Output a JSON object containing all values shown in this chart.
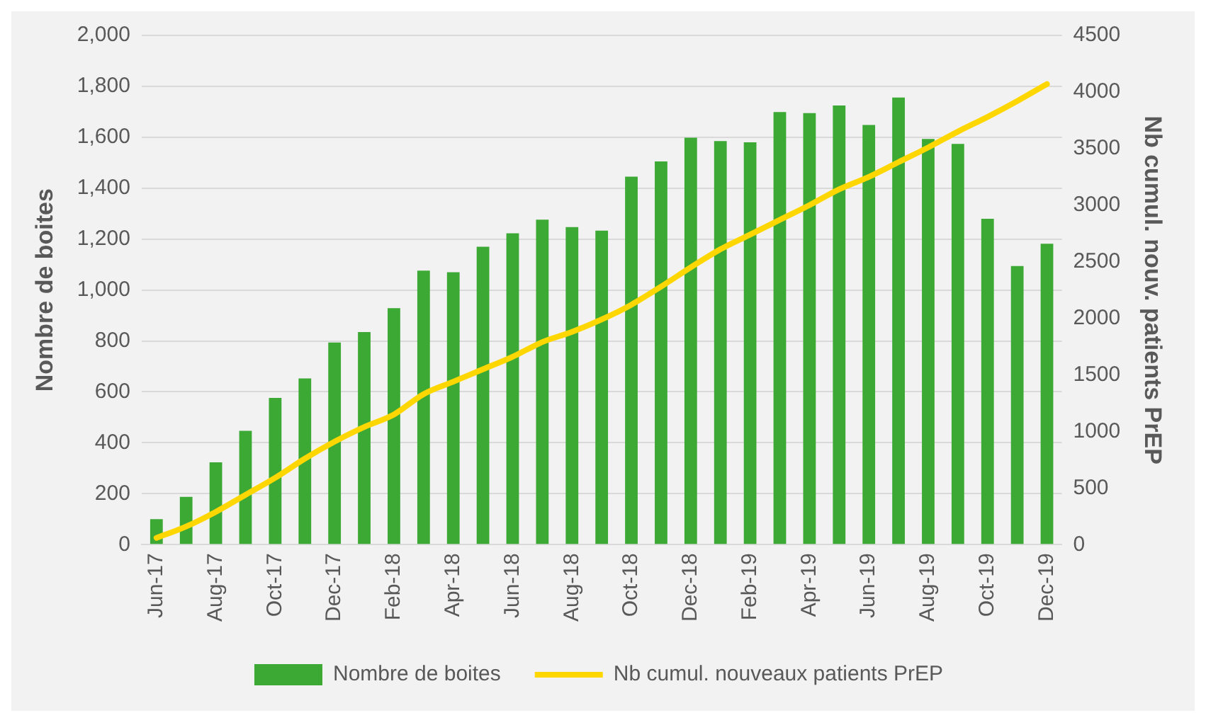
{
  "chart_data": {
    "type": "bar",
    "xlabel": null,
    "ylabel": "Nombre de boites",
    "y2label": "Nb cumul. nouv. patients PrEP",
    "categories": [
      "Jun-17",
      null,
      "Aug-17",
      null,
      "Oct-17",
      null,
      "Dec-17",
      null,
      "Feb-18",
      null,
      "Apr-18",
      null,
      "Jun-18",
      null,
      "Aug-18",
      null,
      "Oct-18",
      null,
      "Dec-18",
      null,
      "Feb-19",
      null,
      "Apr-19",
      null,
      "Jun-19",
      null,
      "Aug-19",
      null,
      "Oct-19",
      null,
      "Dec-19"
    ],
    "series": [
      {
        "name": "Nombre de boites",
        "color": "#3da935",
        "values": [
          100,
          188,
          323,
          447,
          576,
          653,
          794,
          835,
          929,
          1076,
          1070,
          1170,
          1223,
          1276,
          1247,
          1233,
          1445,
          1505,
          1598,
          1585,
          1580,
          1699,
          1695,
          1725,
          1648,
          1756,
          1593,
          1574,
          1280,
          1094,
          1182
        ]
      },
      {
        "name": "Nb cumul. nouveaux patients PrEP",
        "type": "line",
        "axis": "y2",
        "color": "#ffd700",
        "values": [
          60,
          160,
          290,
          440,
          590,
          760,
          910,
          1040,
          1150,
          1330,
          1440,
          1550,
          1660,
          1790,
          1880,
          1990,
          2120,
          2280,
          2450,
          2610,
          2740,
          2870,
          3000,
          3140,
          3250,
          3380,
          3510,
          3650,
          3780,
          3920,
          4070
        ]
      }
    ],
    "ylim": [
      0,
      2000
    ],
    "yticks": [
      0,
      {
        "value": 200,
        "label": "200"
      },
      {
        "value": 400,
        "label": "400"
      },
      {
        "value": 600,
        "label": "600"
      },
      {
        "value": 800,
        "label": "800"
      },
      {
        "value": 1000,
        "label": "1,000"
      },
      {
        "value": 1200,
        "label": "1,200"
      },
      {
        "value": 1400,
        "label": "1,400"
      },
      {
        "value": 1600,
        "label": "1,600"
      },
      {
        "value": 1800,
        "label": "1,800"
      },
      {
        "value": 2000,
        "label": "2,000"
      }
    ],
    "y2lim": [
      0,
      4500
    ],
    "y2ticks": [
      0,
      500,
      1000,
      1500,
      2000,
      2500,
      3000,
      3500,
      4000,
      4500
    ],
    "grid": "y",
    "legend": "bottom",
    "marker": "none"
  }
}
